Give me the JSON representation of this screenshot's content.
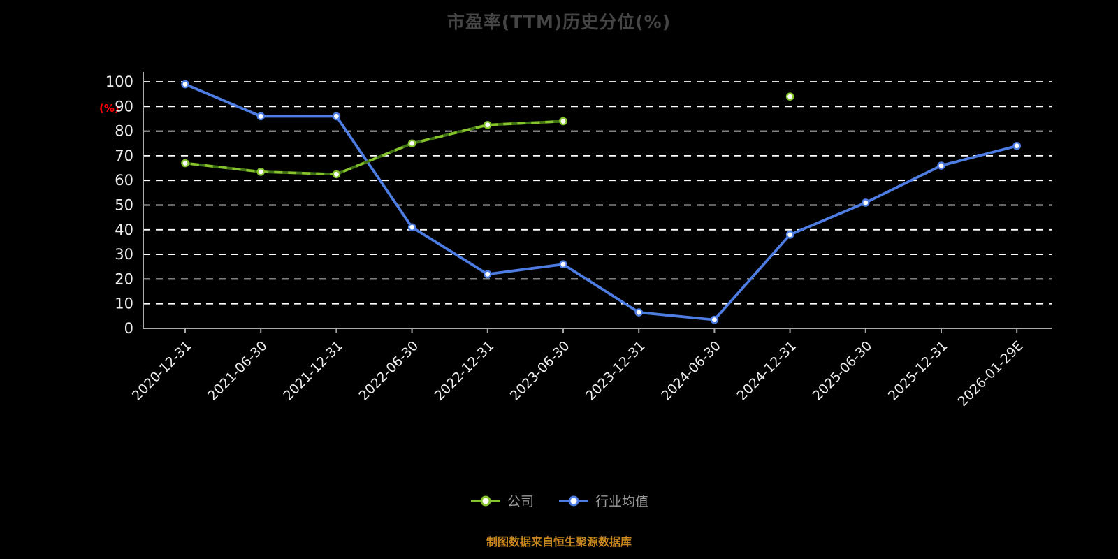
{
  "title": "市盈率(TTM)历史分位(%)",
  "footer": "制图数据来自恒生聚源数据库",
  "colors": {
    "background": "#000000",
    "grid": "#ffffff",
    "axis": "#aaaaaa",
    "tick_label": "#eeeeee",
    "title": "#454545",
    "ylabel": "#ff0000",
    "legend_text": "#9a9a9a",
    "footer_text": "#c8871e",
    "company": "#85c42d",
    "industry": "#4d7de3"
  },
  "chart_data": {
    "type": "line",
    "title": "市盈率(TTM)历史分位(%)",
    "xlabel": "",
    "ylabel": "(%)",
    "ylim": [
      0,
      100
    ],
    "yticks": [
      0,
      10,
      20,
      30,
      40,
      50,
      60,
      70,
      80,
      90,
      100
    ],
    "grid": true,
    "grid_style": "dashed",
    "legend_position": "bottom",
    "categories": [
      "2020-12-31",
      "2021-06-30",
      "2021-12-31",
      "2022-06-30",
      "2022-12-31",
      "2023-06-30",
      "2023-12-31",
      "2024-06-30",
      "2024-12-31",
      "2025-06-30",
      "2025-12-31",
      "2026-01-29E"
    ],
    "series": [
      {
        "name": "公司",
        "color": "#85c42d",
        "style": "solid-with-dash-overlay",
        "values": [
          67,
          63.5,
          62.5,
          75,
          82.5,
          84,
          null,
          null,
          94,
          null,
          null,
          null
        ]
      },
      {
        "name": "行业均值",
        "color": "#4d7de3",
        "style": "solid",
        "values": [
          99,
          86,
          86,
          41,
          22,
          26,
          6.5,
          3.5,
          38,
          51,
          66,
          74
        ]
      }
    ]
  }
}
